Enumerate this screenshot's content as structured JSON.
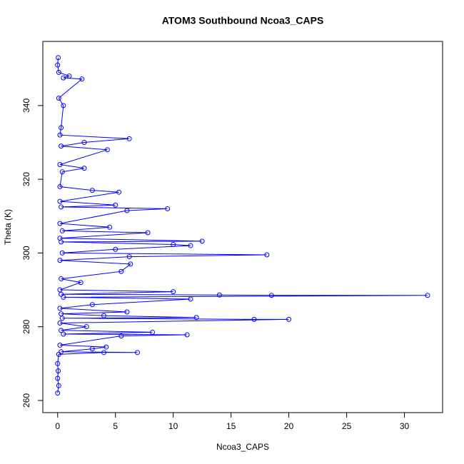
{
  "chart_data": {
    "type": "line",
    "title": "ATOM3 Southbound Ncoa3_CAPS",
    "x_label": "Ncoa3_CAPS",
    "y_label": "Theta (K)",
    "color": "#0000ff",
    "marker": "circle",
    "xlim": [
      -1.28,
      33.3
    ],
    "ylim": [
      256.7,
      357.4
    ],
    "xticks": [
      0,
      5,
      10,
      15,
      20,
      25,
      30
    ],
    "yticks": [
      260,
      280,
      300,
      320,
      340
    ],
    "x": [
      0,
      0.1,
      0,
      0.05,
      0,
      0.1,
      4,
      6.9,
      0.3,
      3,
      4.2,
      0.2,
      5.5,
      11.2,
      0.5,
      8.2,
      0.3,
      2.5,
      0.2,
      20,
      17,
      0.4,
      12,
      4,
      0.3,
      6,
      0.2,
      3,
      11.5,
      0.5,
      32,
      18.5,
      14,
      0.3,
      10,
      0.2,
      2,
      0.3,
      5.5,
      6.3,
      0.2,
      6.2,
      18.1,
      0.4,
      5,
      11.5,
      10,
      0.3,
      12.5,
      0.2,
      7.8,
      0.4,
      4.5,
      0.2,
      6,
      9.5,
      0.3,
      5,
      0.2,
      5.3,
      3,
      0.2,
      0.4,
      2.3,
      0.2,
      4.3,
      0.3,
      2.3,
      6.2,
      0.2,
      0.3,
      0.5,
      0.1,
      2.1,
      0.5,
      1,
      0.1,
      0,
      0.05
    ],
    "values": [
      262,
      264,
      266,
      268,
      270,
      272.5,
      273,
      273,
      273.2,
      274,
      274.5,
      275,
      277.5,
      277.8,
      278,
      278.5,
      279,
      280,
      281,
      282,
      282,
      282.3,
      282.5,
      283,
      283.5,
      284,
      285,
      286,
      287.5,
      288,
      288.5,
      288.5,
      288.6,
      288.8,
      289.5,
      290,
      292,
      293,
      295,
      297,
      298,
      299,
      299.5,
      300,
      301,
      302,
      302.3,
      303,
      303.2,
      304,
      305.5,
      306,
      307,
      308,
      311.5,
      312,
      312.5,
      313,
      314,
      316.5,
      317,
      318,
      322,
      323,
      324,
      328,
      329,
      330,
      331,
      332,
      334,
      340,
      342,
      347.2,
      347.5,
      348,
      349,
      351,
      353
    ]
  }
}
